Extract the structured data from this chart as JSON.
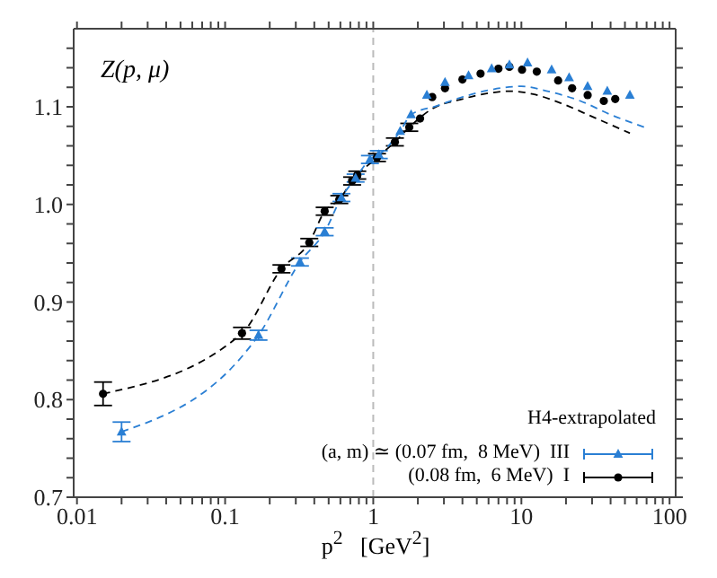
{
  "chart_data": {
    "type": "scatter",
    "annotations": [
      "Z(p, μ)"
    ],
    "xlabel": "p$^{2}$   [GeV$^{2}$]",
    "legend_title": "H4-extrapolated",
    "legend": "bottom right",
    "log": "x",
    "xlim": [
      0.0095,
      110
    ],
    "xticks": [
      0.01,
      0.1,
      1,
      10,
      100,
      {
        "value": 0.02,
        "label": null
      },
      {
        "value": 0.03,
        "label": null
      },
      {
        "value": 0.04,
        "label": null
      },
      {
        "value": 0.05,
        "label": null
      },
      {
        "value": 0.06,
        "label": null
      },
      {
        "value": 0.07,
        "label": null
      },
      {
        "value": 0.08,
        "label": null
      },
      {
        "value": 0.09,
        "label": null
      },
      {
        "value": 0.2,
        "label": null
      },
      {
        "value": 0.3,
        "label": null
      },
      {
        "value": 0.4,
        "label": null
      },
      {
        "value": 0.5,
        "label": null
      },
      {
        "value": 0.6,
        "label": null
      },
      {
        "value": 0.7,
        "label": null
      },
      {
        "value": 0.8,
        "label": null
      },
      {
        "value": 0.9,
        "label": null
      },
      {
        "value": 2,
        "label": null
      },
      {
        "value": 3,
        "label": null
      },
      {
        "value": 4,
        "label": null
      },
      {
        "value": 5,
        "label": null
      },
      {
        "value": 6,
        "label": null
      },
      {
        "value": 7,
        "label": null
      },
      {
        "value": 8,
        "label": null
      },
      {
        "value": 9,
        "label": null
      },
      {
        "value": 20,
        "label": null
      },
      {
        "value": 30,
        "label": null
      },
      {
        "value": 40,
        "label": null
      },
      {
        "value": 50,
        "label": null
      },
      {
        "value": 60,
        "label": null
      },
      {
        "value": 70,
        "label": null
      },
      {
        "value": 80,
        "label": null
      },
      {
        "value": 90,
        "label": null
      }
    ],
    "ylim": [
      0.7,
      1.18
    ],
    "yticks": [
      0.7,
      0.8,
      0.9,
      {
        "value": 1,
        "label": "1.0"
      },
      1.1,
      {
        "value": 0.72,
        "label": null
      },
      {
        "value": 0.74,
        "label": null
      },
      {
        "value": 0.76,
        "label": null
      },
      {
        "value": 0.78,
        "label": null
      },
      {
        "value": 0.82,
        "label": null
      },
      {
        "value": 0.84,
        "label": null
      },
      {
        "value": 0.86,
        "label": null
      },
      {
        "value": 0.88,
        "label": null
      },
      {
        "value": 0.92,
        "label": null
      },
      {
        "value": 0.94,
        "label": null
      },
      {
        "value": 0.96,
        "label": null
      },
      {
        "value": 0.98,
        "label": null
      },
      {
        "value": 1.02,
        "label": null
      },
      {
        "value": 1.04,
        "label": null
      },
      {
        "value": 1.06,
        "label": null
      },
      {
        "value": 1.08,
        "label": null
      },
      {
        "value": 1.12,
        "label": null
      },
      {
        "value": 1.14,
        "label": null
      },
      {
        "value": 1.16,
        "label": null
      }
    ],
    "ref_lines": [
      {
        "axis": "x",
        "value": 1,
        "label": null,
        "color": "#bbbbbb",
        "line_style": "dashed"
      }
    ],
    "series": [
      {
        "type": "line",
        "color": "#2a7fd4",
        "line_style": "dashed",
        "marker": "none",
        "x": [
          0.02,
          0.168,
          0.32,
          0.47,
          0.61,
          0.76,
          0.95,
          1.09,
          1.52,
          1.8,
          2.7,
          4,
          6,
          10,
          15,
          25,
          40,
          68
        ],
        "values": [
          0.767,
          0.866,
          0.941,
          0.972,
          1.007,
          1.027,
          1.046,
          1.051,
          1.075,
          1.092,
          1.101,
          1.11,
          1.117,
          1.121,
          1.116,
          1.106,
          1.092,
          1.079
        ]
      },
      {
        "type": "line",
        "color": "#000000",
        "line_style": "dashed",
        "marker": "none",
        "x": [
          0.015,
          0.13,
          0.24,
          0.37,
          0.47,
          0.59,
          0.72,
          1.06,
          1.4,
          1.75,
          2.5,
          4,
          6,
          8.3,
          12,
          19,
          30,
          54
        ],
        "values": [
          0.806,
          0.868,
          0.934,
          0.961,
          0.993,
          1.005,
          1.024,
          1.048,
          1.064,
          1.079,
          1.098,
          1.108,
          1.114,
          1.116,
          1.113,
          1.103,
          1.09,
          1.073
        ]
      },
      {
        "name": "(a, m) ≃ (0.07 fm,  8 MeV)  III",
        "color": "#2a7fd4",
        "marker": "triangle",
        "x": [
          0.02,
          0.168,
          0.32,
          0.47,
          0.61,
          0.76,
          0.95,
          1.09,
          1.52,
          1.8,
          2.3,
          3.05,
          4.4,
          6.3,
          8.3,
          11,
          16,
          21,
          28,
          38,
          54
        ],
        "values": [
          0.767,
          0.866,
          0.941,
          0.972,
          1.007,
          1.027,
          1.046,
          1.051,
          1.075,
          1.092,
          1.112,
          1.125,
          1.132,
          1.139,
          1.143,
          1.145,
          1.138,
          1.13,
          1.121,
          1.116,
          1.112
        ],
        "errors": [
          0.01,
          0.005,
          0.004,
          0.004,
          0.004,
          0.004,
          0.004,
          0.004,
          null,
          null,
          null,
          null,
          null,
          null,
          null,
          null,
          null,
          null,
          null,
          null,
          null
        ]
      },
      {
        "name": "(0.08 fm,  6 MeV)  I",
        "color": "#000000",
        "marker": "circle",
        "x": [
          0.015,
          0.13,
          0.24,
          0.37,
          0.47,
          0.59,
          0.72,
          0.78,
          1.06,
          1.4,
          1.75,
          2.07,
          2.5,
          3.05,
          4,
          5.3,
          7,
          8.3,
          10.1,
          12.7,
          17.7,
          22,
          28,
          36,
          43
        ],
        "values": [
          0.806,
          0.868,
          0.934,
          0.961,
          0.993,
          1.005,
          1.024,
          1.03,
          1.048,
          1.064,
          1.079,
          1.088,
          1.11,
          1.119,
          1.128,
          1.134,
          1.139,
          1.141,
          1.138,
          1.136,
          1.127,
          1.119,
          1.112,
          1.106,
          1.108
        ],
        "errors": [
          0.012,
          0.006,
          0.004,
          0.004,
          0.004,
          0.004,
          0.004,
          0.004,
          0.004,
          0.004,
          0.004,
          null,
          null,
          null,
          null,
          null,
          null,
          null,
          null,
          null,
          null,
          null,
          null,
          null,
          null
        ]
      }
    ]
  }
}
